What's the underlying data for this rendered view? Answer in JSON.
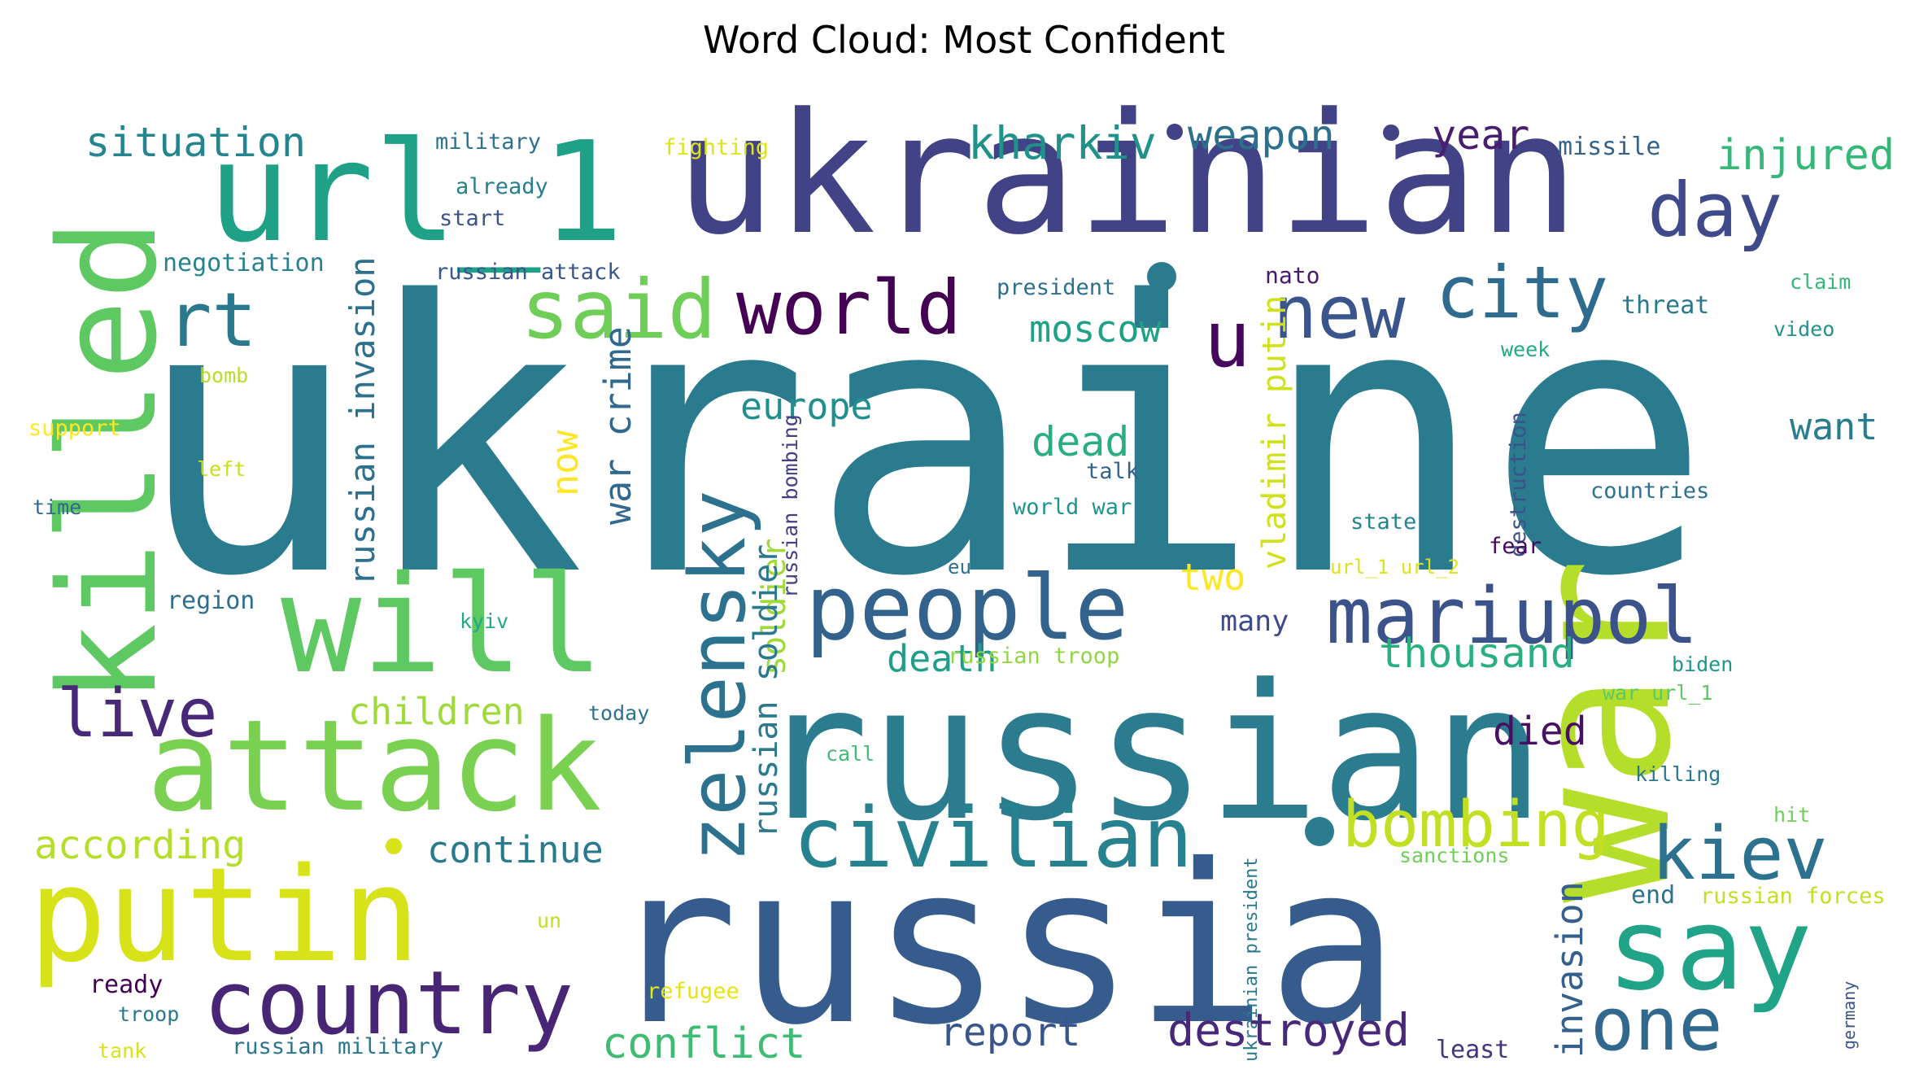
{
  "title": "Word Cloud: Most Confident",
  "words": [
    {
      "text": "ukraine",
      "color": "#2a7b8e"
    },
    {
      "text": "ukrainian",
      "color": "#424286"
    },
    {
      "text": "russia",
      "color": "#365c8d"
    },
    {
      "text": "russian",
      "color": "#2b7c8e"
    },
    {
      "text": "war",
      "color": "#b5de2b"
    },
    {
      "text": "url_1",
      "color": "#1fa187"
    },
    {
      "text": "killed",
      "color": "#5ec962"
    },
    {
      "text": "will",
      "color": "#5ec962"
    },
    {
      "text": "putin",
      "color": "#d8e219"
    },
    {
      "text": "attack",
      "color": "#7ad151"
    },
    {
      "text": "people",
      "color": "#33638d"
    },
    {
      "text": "country",
      "color": "#482575"
    },
    {
      "text": "civilian",
      "color": "#26828e"
    },
    {
      "text": "mariupol",
      "color": "#3b528b"
    },
    {
      "text": "say",
      "color": "#20a386"
    },
    {
      "text": "kiev",
      "color": "#2c718e"
    },
    {
      "text": "zelensky",
      "color": "#2c728e"
    },
    {
      "text": "world",
      "color": "#440154"
    },
    {
      "text": "said",
      "color": "#6ece58"
    },
    {
      "text": "new",
      "color": "#39558c"
    },
    {
      "text": "city",
      "color": "#2f6b8e"
    },
    {
      "text": "day",
      "color": "#3e4a89"
    },
    {
      "text": "rt",
      "color": "#2a788e"
    },
    {
      "text": "u",
      "color": "#46085c"
    },
    {
      "text": "live",
      "color": "#482878"
    },
    {
      "text": "bombing",
      "color": "#c2df23"
    },
    {
      "text": "one",
      "color": "#31688e"
    },
    {
      "text": "situation",
      "color": "#25858e"
    },
    {
      "text": "kharkiv",
      "color": "#21918c"
    },
    {
      "text": "weapon",
      "color": "#2d708e"
    },
    {
      "text": "year",
      "color": "#481f70"
    },
    {
      "text": "injured",
      "color": "#35b779"
    },
    {
      "text": "missile",
      "color": "#33638d"
    },
    {
      "text": "military",
      "color": "#2c728e"
    },
    {
      "text": "fighting",
      "color": "#dde318"
    },
    {
      "text": "already",
      "color": "#277f8e"
    },
    {
      "text": "start",
      "color": "#3b528b"
    },
    {
      "text": "negotiation",
      "color": "#26828e"
    },
    {
      "text": "russian attack",
      "color": "#39568c"
    },
    {
      "text": "president",
      "color": "#2d708e"
    },
    {
      "text": "nato",
      "color": "#481a6c"
    },
    {
      "text": "threat",
      "color": "#2a788e"
    },
    {
      "text": "claim",
      "color": "#35b779"
    },
    {
      "text": "video",
      "color": "#21918c"
    },
    {
      "text": "week",
      "color": "#22a884"
    },
    {
      "text": "moscow",
      "color": "#1fa187"
    },
    {
      "text": "russian invasion",
      "color": "#2d708e"
    },
    {
      "text": "europe",
      "color": "#218f8d"
    },
    {
      "text": "dead",
      "color": "#29af7f"
    },
    {
      "text": "want",
      "color": "#287d8e"
    },
    {
      "text": "now",
      "color": "#fde725"
    },
    {
      "text": "war crime",
      "color": "#31688e"
    },
    {
      "text": "soldier",
      "color": "#a0da39"
    },
    {
      "text": "russian soldier",
      "color": "#2a788e"
    },
    {
      "text": "russian bombing",
      "color": "#433e85"
    },
    {
      "text": "vladimir putin",
      "color": "#d0e11c"
    },
    {
      "text": "destruction",
      "color": "#3b528b"
    },
    {
      "text": "bomb",
      "color": "#b5de2b"
    },
    {
      "text": "support",
      "color": "#fde725"
    },
    {
      "text": "left",
      "color": "#c8e020"
    },
    {
      "text": "time",
      "color": "#31688e"
    },
    {
      "text": "talk",
      "color": "#33638d"
    },
    {
      "text": "world war",
      "color": "#1f948c"
    },
    {
      "text": "state",
      "color": "#25848e"
    },
    {
      "text": "countries",
      "color": "#2c728e"
    },
    {
      "text": "fear",
      "color": "#46085c"
    },
    {
      "text": "two",
      "color": "#fde725"
    },
    {
      "text": "eu",
      "color": "#2e6f8e"
    },
    {
      "text": "url_1 url_2",
      "color": "#dde318"
    },
    {
      "text": "many",
      "color": "#3e4a89"
    },
    {
      "text": "region",
      "color": "#2e6f8e"
    },
    {
      "text": "kyiv",
      "color": "#22a884"
    },
    {
      "text": "death",
      "color": "#1f9e89"
    },
    {
      "text": "thousand",
      "color": "#2ab07f"
    },
    {
      "text": "died",
      "color": "#471063"
    },
    {
      "text": "biden",
      "color": "#1f958b"
    },
    {
      "text": "children",
      "color": "#9fda3a"
    },
    {
      "text": "russian troop",
      "color": "#90d743"
    },
    {
      "text": "war url_1",
      "color": "#5ec962"
    },
    {
      "text": "today",
      "color": "#2c728e"
    },
    {
      "text": "call",
      "color": "#3fbc73"
    },
    {
      "text": "killing",
      "color": "#2a788e"
    },
    {
      "text": "continue",
      "color": "#297a8e"
    },
    {
      "text": "according",
      "color": "#b5de2b"
    },
    {
      "text": "invasion",
      "color": "#355f8d"
    },
    {
      "text": "hit",
      "color": "#6ece58"
    },
    {
      "text": "sanctions",
      "color": "#6ece58"
    },
    {
      "text": "ukrainian president",
      "color": "#2a788e"
    },
    {
      "text": "end",
      "color": "#2c728e"
    },
    {
      "text": "russian forces",
      "color": "#c2df23"
    },
    {
      "text": "un",
      "color": "#c2df23"
    },
    {
      "text": "ready",
      "color": "#440154"
    },
    {
      "text": "refugee",
      "color": "#e5e419"
    },
    {
      "text": "troop",
      "color": "#2a788e"
    },
    {
      "text": "tank",
      "color": "#d8e219"
    },
    {
      "text": "russian military",
      "color": "#2a768e"
    },
    {
      "text": "conflict",
      "color": "#3fbc73"
    },
    {
      "text": "report",
      "color": "#39568c"
    },
    {
      "text": "destroyed",
      "color": "#482878"
    },
    {
      "text": "least",
      "color": "#46337f"
    },
    {
      "text": "germany",
      "color": "#3b528b"
    }
  ]
}
